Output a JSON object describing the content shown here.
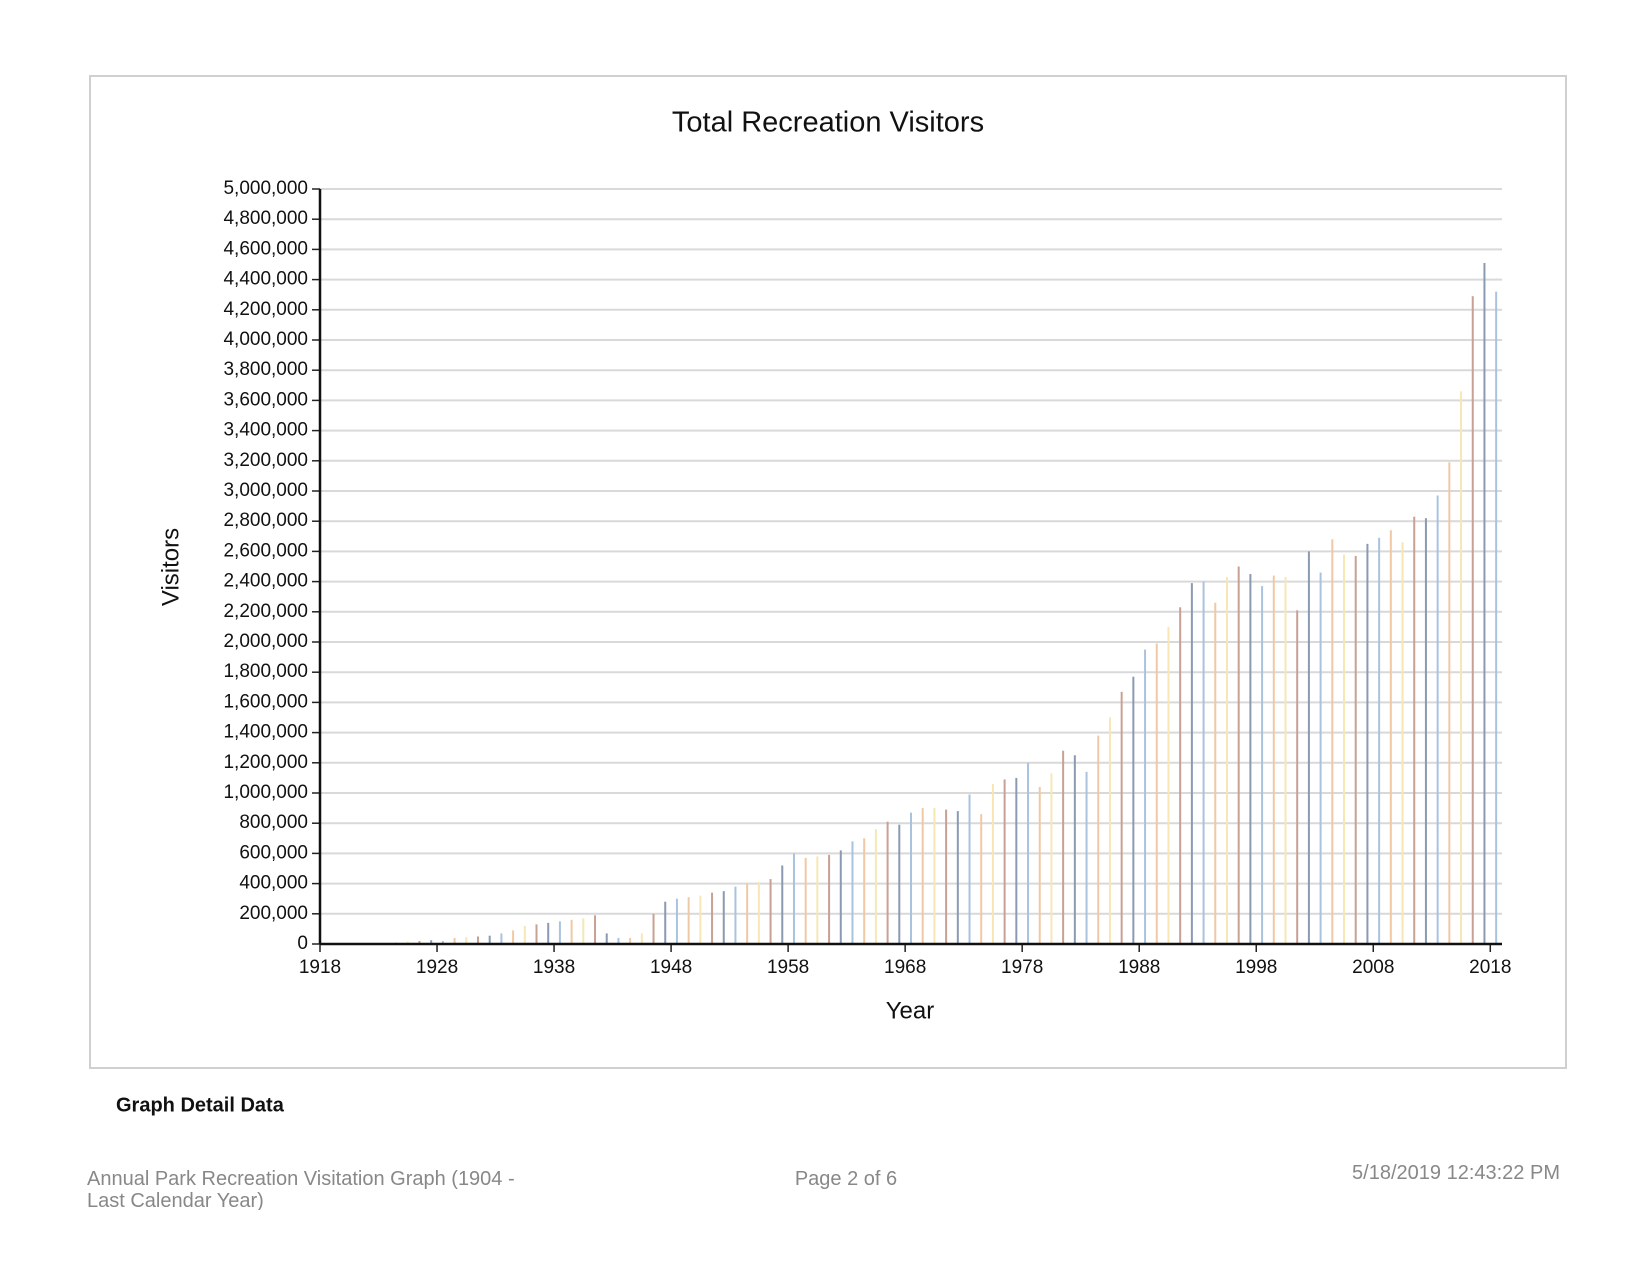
{
  "chart_data": {
    "type": "bar",
    "title": "Total Recreation Visitors",
    "x_label": "Year",
    "y_label": "Visitors",
    "x": [
      1918,
      1919,
      1920,
      1921,
      1922,
      1923,
      1924,
      1925,
      1926,
      1927,
      1928,
      1929,
      1930,
      1931,
      1932,
      1933,
      1934,
      1935,
      1936,
      1937,
      1938,
      1939,
      1940,
      1941,
      1942,
      1943,
      1944,
      1945,
      1946,
      1947,
      1948,
      1949,
      1950,
      1951,
      1952,
      1953,
      1954,
      1955,
      1956,
      1957,
      1958,
      1959,
      1960,
      1961,
      1962,
      1963,
      1964,
      1965,
      1966,
      1967,
      1968,
      1969,
      1970,
      1971,
      1972,
      1973,
      1974,
      1975,
      1976,
      1977,
      1978,
      1979,
      1980,
      1981,
      1982,
      1983,
      1984,
      1985,
      1986,
      1987,
      1988,
      1989,
      1990,
      1991,
      1992,
      1993,
      1994,
      1995,
      1996,
      1997,
      1998,
      1999,
      2000,
      2001,
      2002,
      2003,
      2004,
      2005,
      2006,
      2007,
      2008,
      2009,
      2010,
      2011,
      2012,
      2013,
      2014,
      2015,
      2016,
      2017,
      2018
    ],
    "values": [
      0,
      0,
      0,
      0,
      0,
      5000,
      10000,
      15000,
      20000,
      25000,
      20000,
      40000,
      45000,
      50000,
      55000,
      70000,
      90000,
      120000,
      130000,
      140000,
      150000,
      160000,
      170000,
      190000,
      70000,
      40000,
      40000,
      70000,
      200000,
      280000,
      300000,
      310000,
      320000,
      340000,
      350000,
      380000,
      400000,
      410000,
      430000,
      520000,
      600000,
      570000,
      580000,
      590000,
      620000,
      680000,
      700000,
      760000,
      810000,
      790000,
      870000,
      900000,
      900000,
      890000,
      880000,
      990000,
      860000,
      1060000,
      1090000,
      1100000,
      1200000,
      1040000,
      1130000,
      1280000,
      1250000,
      1140000,
      1380000,
      1500000,
      1670000,
      1770000,
      1950000,
      1990000,
      2100000,
      2230000,
      2390000,
      2400000,
      2260000,
      2430000,
      2500000,
      2450000,
      2370000,
      2440000,
      2430000,
      2210000,
      2600000,
      2460000,
      2680000,
      2580000,
      2570000,
      2650000,
      2690000,
      2740000,
      2660000,
      2830000,
      2820000,
      2970000,
      3190000,
      3660000,
      4290000,
      4510000,
      4320000
    ],
    "colors": [
      "#a9c3df",
      "#f0c9a4",
      "#f6e7b4",
      "#c9a094",
      "#8a9ab2"
    ],
    "xlim": [
      1918,
      2019
    ],
    "xticks": [
      1918,
      1928,
      1938,
      1948,
      1958,
      1968,
      1978,
      1988,
      1998,
      2008,
      2018
    ],
    "ylim": [
      0,
      5000000
    ],
    "yticks": [
      0,
      {
        "value": 200000,
        "label": "200,000"
      },
      {
        "value": 400000,
        "label": "400,000"
      },
      {
        "value": 600000,
        "label": "600,000"
      },
      {
        "value": 800000,
        "label": "800,000"
      },
      {
        "value": 1000000,
        "label": "1,000,000"
      },
      {
        "value": 1200000,
        "label": "1,200,000"
      },
      {
        "value": 1400000,
        "label": "1,400,000"
      },
      {
        "value": 1600000,
        "label": "1,600,000"
      },
      {
        "value": 1800000,
        "label": "1,800,000"
      },
      {
        "value": 2000000,
        "label": "2,000,000"
      },
      {
        "value": 2200000,
        "label": "2,200,000"
      },
      {
        "value": 2400000,
        "label": "2,400,000"
      },
      {
        "value": 2600000,
        "label": "2,600,000"
      },
      {
        "value": 2800000,
        "label": "2,800,000"
      },
      {
        "value": 3000000,
        "label": "3,000,000"
      },
      {
        "value": 3200000,
        "label": "3,200,000"
      },
      {
        "value": 3400000,
        "label": "3,400,000"
      },
      {
        "value": 3600000,
        "label": "3,600,000"
      },
      {
        "value": 3800000,
        "label": "3,800,000"
      },
      {
        "value": 4000000,
        "label": "4,000,000"
      },
      {
        "value": 4200000,
        "label": "4,200,000"
      },
      {
        "value": 4400000,
        "label": "4,400,000"
      },
      {
        "value": 4600000,
        "label": "4,600,000"
      },
      {
        "value": 4800000,
        "label": "4,800,000"
      },
      {
        "value": 5000000,
        "label": "5,000,000"
      }
    ],
    "grid": true
  },
  "section": "Graph Detail Data",
  "footer": {
    "left": "Annual Park Recreation Visitation Graph (1904 - Last Calendar Year)",
    "center": "Page 2 of 6",
    "right": "5/18/2019 12:43:22 PM"
  }
}
